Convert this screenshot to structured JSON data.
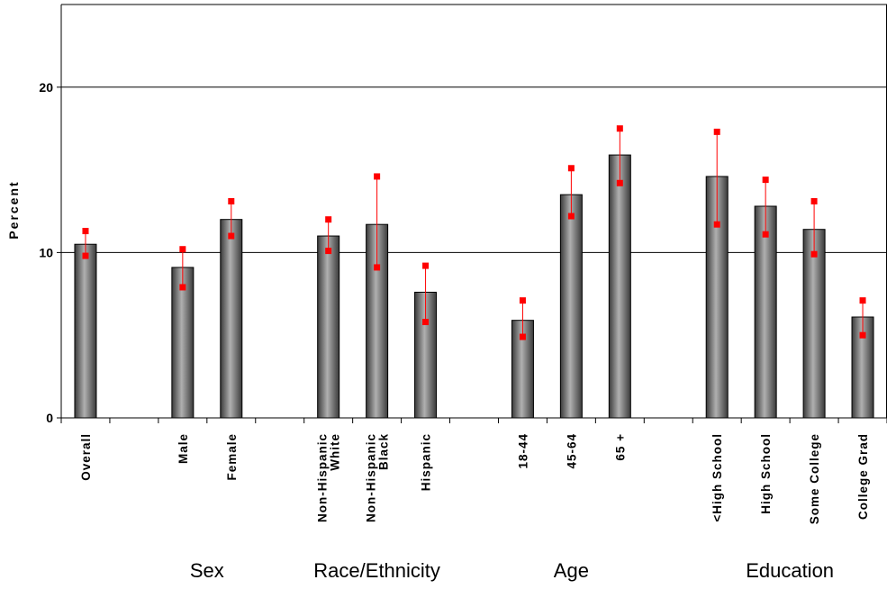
{
  "chart_data": {
    "type": "bar",
    "ylabel": "Percent",
    "ylim": [
      0,
      25
    ],
    "yticks": [
      0,
      10,
      20
    ],
    "grid": true,
    "bar_color": "#7a7a7a",
    "error_color": "#ff0000",
    "categories": [
      {
        "label": "Overall",
        "value": 10.5,
        "ci_low": 9.8,
        "ci_high": 11.3
      },
      {
        "label": "",
        "value": null
      },
      {
        "label": "Male",
        "value": 9.1,
        "ci_low": 7.9,
        "ci_high": 10.2
      },
      {
        "label": "Female",
        "value": 12.0,
        "ci_low": 11.0,
        "ci_high": 13.1
      },
      {
        "label": "",
        "value": null
      },
      {
        "label": "Non-Hispanic\nWhite",
        "value": 11.0,
        "ci_low": 10.1,
        "ci_high": 12.0
      },
      {
        "label": "Non-Hispanic\nBlack",
        "value": 11.7,
        "ci_low": 9.1,
        "ci_high": 14.6
      },
      {
        "label": "Hispanic",
        "value": 7.6,
        "ci_low": 5.8,
        "ci_high": 9.2
      },
      {
        "label": "",
        "value": null
      },
      {
        "label": "18-44",
        "value": 5.9,
        "ci_low": 4.9,
        "ci_high": 7.1
      },
      {
        "label": "45-64",
        "value": 13.5,
        "ci_low": 12.2,
        "ci_high": 15.1
      },
      {
        "label": "65 +",
        "value": 15.9,
        "ci_low": 14.2,
        "ci_high": 17.5
      },
      {
        "label": "",
        "value": null
      },
      {
        "label": "<High School",
        "value": 14.6,
        "ci_low": 11.7,
        "ci_high": 17.3
      },
      {
        "label": "High School",
        "value": 12.8,
        "ci_low": 11.1,
        "ci_high": 14.4
      },
      {
        "label": "Some College",
        "value": 11.4,
        "ci_low": 9.9,
        "ci_high": 13.1
      },
      {
        "label": "College Grad",
        "value": 6.1,
        "ci_low": 5.0,
        "ci_high": 7.1
      }
    ],
    "groups": [
      {
        "label": "Sex",
        "from": 2,
        "to": 3
      },
      {
        "label": "Race/Ethnicity",
        "from": 5,
        "to": 7
      },
      {
        "label": "Age",
        "from": 9,
        "to": 11
      },
      {
        "label": "Education",
        "from": 13,
        "to": 16
      }
    ]
  }
}
